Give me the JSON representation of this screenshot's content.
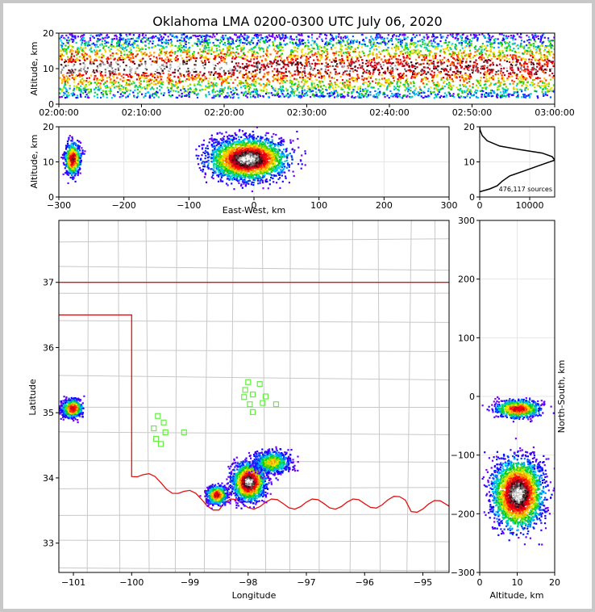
{
  "title": "Oklahoma LMA 0200-0300 UTC July 06, 2020",
  "colors": {
    "state_border": "#e41010",
    "county": "#c8c8c8",
    "station": "#66ee44",
    "text": "#000000"
  },
  "chart_data": [
    {
      "type": "heatmap",
      "panel": "time-altitude",
      "ylabel": "Altitude, km",
      "ylim": [
        0,
        20
      ],
      "yticks": [
        "0",
        "10",
        "20"
      ],
      "xticks": [
        "02:00:00",
        "02:10:00",
        "02:20:00",
        "02:30:00",
        "02:40:00",
        "02:50:00",
        "03:00:00"
      ],
      "band_altitude_km": [
        2,
        20
      ],
      "peak_density_altitude_km": 10.5
    },
    {
      "type": "heatmap",
      "panel": "east-west-altitude",
      "xlabel": "East-West, km",
      "ylabel": "Altitude, km",
      "xlim": [
        -300,
        300
      ],
      "ylim": [
        0,
        20
      ],
      "xticks": [
        "−300",
        "−200",
        "−100",
        "0",
        "100",
        "200",
        "300"
      ],
      "yticks": [
        "0",
        "10",
        "20"
      ],
      "grid": true,
      "clusters": [
        {
          "x_center_km": -280,
          "z_center_km": 11,
          "intensity": "medium"
        },
        {
          "x_center_km": -10,
          "z_center_km": 11,
          "intensity": "high"
        }
      ]
    },
    {
      "type": "line",
      "panel": "altitude-histogram",
      "annotation": "476,117 sources",
      "xlim": [
        0,
        15000
      ],
      "ylim": [
        0,
        20
      ],
      "xticks": [
        "0",
        "10000"
      ],
      "yticks": [
        "0",
        "10",
        "20"
      ],
      "grid": true,
      "x": [
        0,
        2000,
        3500,
        4500,
        6000,
        9000,
        12000,
        15000,
        14500,
        12500,
        8000,
        4000,
        1500,
        500,
        100,
        0
      ],
      "y": [
        1.5,
        2.3,
        3.2,
        4.5,
        6.0,
        7.5,
        9.0,
        10.5,
        11.5,
        12.5,
        13.5,
        14.5,
        16.0,
        17.5,
        19.0,
        20.0
      ]
    },
    {
      "type": "heatmap",
      "panel": "plan-view",
      "xlabel": "Longitude",
      "ylabel": "Latitude",
      "xlim": [
        -101.25,
        -94.55
      ],
      "ylim": [
        32.55,
        37.95
      ],
      "xticks": [
        "−101",
        "−100",
        "−99",
        "−98",
        "−97",
        "−96",
        "−95"
      ],
      "yticks": [
        "33",
        "34",
        "35",
        "36",
        "37"
      ],
      "clusters": [
        {
          "lon": -101.03,
          "lat": 35.08,
          "intensity": "medium"
        },
        {
          "lon": -98.55,
          "lat": 33.75,
          "intensity": "medium"
        },
        {
          "lon": -98.0,
          "lat": 33.95,
          "intensity": "high"
        },
        {
          "lon": -97.6,
          "lat": 34.25,
          "intensity": "low"
        }
      ],
      "stations": [
        {
          "lon": -99.55,
          "lat": 34.95
        },
        {
          "lon": -99.45,
          "lat": 34.85
        },
        {
          "lon": -99.62,
          "lat": 34.76
        },
        {
          "lon": -99.42,
          "lat": 34.7
        },
        {
          "lon": -99.58,
          "lat": 34.6
        },
        {
          "lon": -99.5,
          "lat": 34.52
        },
        {
          "lon": -99.1,
          "lat": 34.7
        },
        {
          "lon": -98.0,
          "lat": 35.47
        },
        {
          "lon": -97.8,
          "lat": 35.44
        },
        {
          "lon": -98.05,
          "lat": 35.35
        },
        {
          "lon": -97.92,
          "lat": 35.28
        },
        {
          "lon": -98.07,
          "lat": 35.24
        },
        {
          "lon": -97.7,
          "lat": 35.25
        },
        {
          "lon": -97.75,
          "lat": 35.15
        },
        {
          "lon": -97.97,
          "lat": 35.13
        },
        {
          "lon": -97.52,
          "lat": 35.13
        },
        {
          "lon": -97.92,
          "lat": 35.01
        }
      ]
    },
    {
      "type": "heatmap",
      "panel": "altitude-north-south",
      "xlabel": "Altitude, km",
      "ylabel": "North-South, km",
      "xlim": [
        0,
        20
      ],
      "ylim": [
        -300,
        300
      ],
      "xticks": [
        "0",
        "10",
        "20"
      ],
      "yticks": [
        "−300",
        "−200",
        "−100",
        "0",
        "100",
        "200",
        "300"
      ],
      "grid": true,
      "clusters": [
        {
          "z_center_km": 10,
          "y_center_km": -20,
          "intensity": "medium"
        },
        {
          "z_center_km": 10,
          "y_center_km": -165,
          "intensity": "high"
        }
      ]
    }
  ]
}
